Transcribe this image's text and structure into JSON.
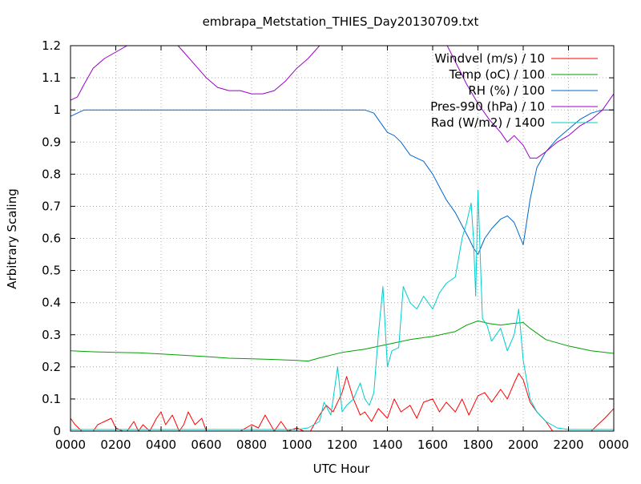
{
  "chart_data": {
    "type": "line",
    "title": "embrapa_Metstation_THIES_Day20130709.txt",
    "xlabel": "UTC Hour",
    "ylabel": "Arbitrary Scaling",
    "xlim": [
      0,
      24
    ],
    "ylim": [
      0,
      1.2
    ],
    "grid": true,
    "legend_position": "top-right",
    "x_ticks": [
      {
        "value": 0,
        "label": "0000"
      },
      {
        "value": 2,
        "label": "0200"
      },
      {
        "value": 4,
        "label": "0400"
      },
      {
        "value": 6,
        "label": "0600"
      },
      {
        "value": 8,
        "label": "0800"
      },
      {
        "value": 10,
        "label": "1000"
      },
      {
        "value": 12,
        "label": "1200"
      },
      {
        "value": 14,
        "label": "1400"
      },
      {
        "value": 16,
        "label": "1600"
      },
      {
        "value": 18,
        "label": "1800"
      },
      {
        "value": 20,
        "label": "2000"
      },
      {
        "value": 22,
        "label": "2200"
      },
      {
        "value": 24,
        "label": "0000"
      }
    ],
    "y_ticks": [
      {
        "value": 0,
        "label": "0"
      },
      {
        "value": 0.1,
        "label": "0.1"
      },
      {
        "value": 0.2,
        "label": "0.2"
      },
      {
        "value": 0.3,
        "label": "0.3"
      },
      {
        "value": 0.4,
        "label": "0.4"
      },
      {
        "value": 0.5,
        "label": "0.5"
      },
      {
        "value": 0.6,
        "label": "0.6"
      },
      {
        "value": 0.7,
        "label": "0.7"
      },
      {
        "value": 0.8,
        "label": "0.8"
      },
      {
        "value": 0.9,
        "label": "0.9"
      },
      {
        "value": 1,
        "label": "1"
      },
      {
        "value": 1.1,
        "label": "1.1"
      },
      {
        "value": 1.2,
        "label": "1.2"
      }
    ],
    "series": [
      {
        "name": "Windvel (m/s) / 10",
        "color": "#ff0000",
        "x": [
          0,
          0.2,
          0.5,
          0.8,
          1.0,
          1.2,
          1.5,
          1.8,
          2.0,
          2.3,
          2.5,
          2.8,
          3.0,
          3.2,
          3.5,
          3.8,
          4.0,
          4.2,
          4.5,
          4.8,
          5.0,
          5.2,
          5.5,
          5.8,
          6.0,
          6.5,
          7.0,
          7.5,
          8.0,
          8.3,
          8.6,
          9.0,
          9.3,
          9.6,
          10.0,
          10.3,
          10.6,
          11.0,
          11.3,
          11.6,
          12.0,
          12.2,
          12.5,
          12.8,
          13.0,
          13.3,
          13.6,
          14.0,
          14.3,
          14.6,
          15.0,
          15.3,
          15.6,
          16.0,
          16.3,
          16.6,
          17.0,
          17.3,
          17.6,
          18.0,
          18.3,
          18.6,
          19.0,
          19.3,
          19.6,
          19.8,
          20.0,
          20.3,
          20.6,
          21.0,
          21.3,
          21.6,
          22.0,
          22.5,
          23.0,
          23.3,
          23.6,
          24.0
        ],
        "y": [
          0.04,
          0.02,
          0.0,
          0.0,
          0.0,
          0.02,
          0.03,
          0.04,
          0.01,
          0.0,
          0.0,
          0.03,
          0.0,
          0.02,
          0.0,
          0.04,
          0.06,
          0.02,
          0.05,
          0.0,
          0.02,
          0.06,
          0.02,
          0.04,
          0.0,
          0.0,
          0.0,
          0.0,
          0.02,
          0.01,
          0.05,
          0.0,
          0.03,
          0.0,
          0.01,
          0.0,
          0.0,
          0.05,
          0.08,
          0.06,
          0.12,
          0.17,
          0.1,
          0.05,
          0.06,
          0.03,
          0.07,
          0.04,
          0.1,
          0.06,
          0.08,
          0.04,
          0.09,
          0.1,
          0.06,
          0.09,
          0.06,
          0.1,
          0.05,
          0.11,
          0.12,
          0.09,
          0.13,
          0.1,
          0.15,
          0.18,
          0.16,
          0.09,
          0.06,
          0.03,
          0.0,
          0.0,
          0.0,
          0.0,
          0.0,
          0.02,
          0.04,
          0.07
        ]
      },
      {
        "name": "Temp (oC) / 100",
        "color": "#00a000",
        "x": [
          0,
          1,
          2,
          3,
          4,
          5,
          6,
          7,
          8,
          9,
          10,
          10.5,
          11,
          12,
          13,
          14,
          15,
          16,
          17,
          17.5,
          18,
          18.5,
          19,
          19.5,
          20,
          20.3,
          21,
          22,
          23,
          24
        ],
        "y": [
          0.25,
          0.247,
          0.245,
          0.244,
          0.24,
          0.236,
          0.232,
          0.227,
          0.225,
          0.223,
          0.22,
          0.218,
          0.228,
          0.245,
          0.255,
          0.27,
          0.285,
          0.295,
          0.31,
          0.33,
          0.343,
          0.335,
          0.33,
          0.335,
          0.338,
          0.32,
          0.285,
          0.265,
          0.25,
          0.242
        ]
      },
      {
        "name": "RH (%) / 100",
        "color": "#0066cc",
        "x": [
          0,
          0.3,
          0.6,
          1,
          2,
          4,
          6,
          8,
          10,
          12,
          13,
          13.4,
          13.7,
          14,
          14.3,
          14.6,
          15,
          15.3,
          15.6,
          16,
          16.3,
          16.6,
          17,
          17.3,
          17.6,
          17.8,
          18,
          18.3,
          18.6,
          19,
          19.3,
          19.6,
          20,
          20.3,
          20.6,
          21,
          21.5,
          22,
          22.5,
          23,
          23.5,
          24
        ],
        "y": [
          0.98,
          0.99,
          1.0,
          1.0,
          1.0,
          1.0,
          1.0,
          1.0,
          1.0,
          1.0,
          1.0,
          0.99,
          0.96,
          0.93,
          0.92,
          0.9,
          0.86,
          0.85,
          0.84,
          0.8,
          0.76,
          0.72,
          0.68,
          0.64,
          0.6,
          0.57,
          0.55,
          0.6,
          0.63,
          0.66,
          0.67,
          0.65,
          0.58,
          0.72,
          0.82,
          0.87,
          0.91,
          0.94,
          0.97,
          0.99,
          1.0,
          1.0
        ]
      },
      {
        "name": "Pres-990 (hPa) / 10",
        "color": "#9900cc",
        "x": [
          0,
          0.3,
          0.6,
          1.0,
          1.5,
          2.0,
          2.5,
          3.0,
          3.5,
          4.0,
          4.5,
          5.0,
          5.5,
          6.0,
          6.5,
          7.0,
          7.5,
          8.0,
          8.5,
          9.0,
          9.5,
          10.0,
          10.5,
          11.0,
          11.5,
          16.5,
          17.0,
          17.5,
          18.0,
          18.5,
          19.0,
          19.3,
          19.6,
          20.0,
          20.3,
          20.6,
          21.0,
          21.5,
          22.0,
          22.5,
          23.0,
          23.5,
          24.0
        ],
        "y": [
          1.03,
          1.04,
          1.08,
          1.13,
          1.16,
          1.18,
          1.2,
          1.2,
          1.2,
          1.2,
          1.22,
          1.18,
          1.14,
          1.1,
          1.07,
          1.06,
          1.06,
          1.05,
          1.05,
          1.06,
          1.09,
          1.13,
          1.16,
          1.2,
          1.22,
          1.22,
          1.15,
          1.08,
          1.02,
          0.97,
          0.93,
          0.9,
          0.92,
          0.89,
          0.85,
          0.85,
          0.87,
          0.9,
          0.92,
          0.95,
          0.97,
          1.0,
          1.05
        ]
      },
      {
        "name": "Rad (W/m2) / 1400",
        "color": "#00cccc",
        "x": [
          0,
          2,
          4,
          6,
          8,
          10,
          10.5,
          11,
          11.2,
          11.5,
          11.8,
          12.0,
          12.2,
          12.5,
          12.8,
          13.0,
          13.2,
          13.4,
          13.6,
          13.8,
          14.0,
          14.2,
          14.5,
          14.7,
          15.0,
          15.3,
          15.6,
          16.0,
          16.3,
          16.6,
          17.0,
          17.3,
          17.5,
          17.7,
          17.8,
          17.9,
          18.0,
          18.2,
          18.4,
          18.6,
          18.8,
          19.0,
          19.3,
          19.6,
          19.8,
          20.0,
          20.3,
          20.6,
          21.0,
          21.5,
          22.0,
          23.0,
          24.0
        ],
        "y": [
          0.005,
          0.005,
          0.005,
          0.005,
          0.005,
          0.005,
          0.01,
          0.03,
          0.09,
          0.05,
          0.2,
          0.06,
          0.08,
          0.1,
          0.15,
          0.1,
          0.08,
          0.12,
          0.3,
          0.45,
          0.2,
          0.25,
          0.26,
          0.45,
          0.4,
          0.38,
          0.42,
          0.38,
          0.43,
          0.46,
          0.48,
          0.6,
          0.65,
          0.71,
          0.6,
          0.42,
          0.75,
          0.35,
          0.33,
          0.28,
          0.3,
          0.32,
          0.25,
          0.3,
          0.38,
          0.22,
          0.1,
          0.06,
          0.03,
          0.01,
          0.005,
          0.005,
          0.005
        ]
      }
    ]
  }
}
